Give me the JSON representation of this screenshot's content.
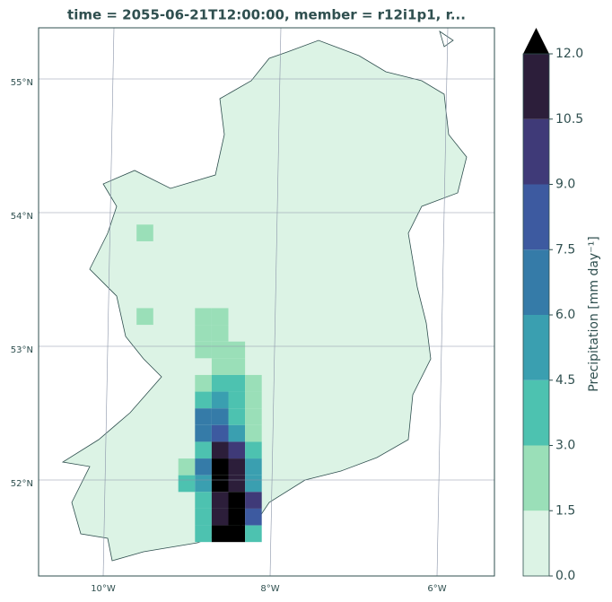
{
  "title": "time = 2055-06-21T12:00:00, member = r12i1p1, r...",
  "map": {
    "lon_labels": [
      {
        "value": -10,
        "label": "10°W"
      },
      {
        "value": -8,
        "label": "8°W"
      },
      {
        "value": -6,
        "label": "6°W"
      }
    ],
    "lat_labels": [
      {
        "value": 55,
        "label": "55°N"
      },
      {
        "value": 54,
        "label": "54°N"
      },
      {
        "value": 53,
        "label": "53°N"
      },
      {
        "value": 52,
        "label": "52°N"
      }
    ],
    "cells": [
      {
        "lon": -8.8,
        "lat": 53.25,
        "value": 1.6
      },
      {
        "lon": -8.6,
        "lat": 53.25,
        "value": 2
      },
      {
        "lon": -8.8,
        "lat": 53.125,
        "value": 2
      },
      {
        "lon": -8.6,
        "lat": 53.125,
        "value": 2
      },
      {
        "lon": -8.8,
        "lat": 53.0,
        "value": 2
      },
      {
        "lon": -8.6,
        "lat": 53.0,
        "value": 2
      },
      {
        "lon": -8.4,
        "lat": 53.0,
        "value": 1.8
      },
      {
        "lon": -8.6,
        "lat": 52.875,
        "value": 2.5
      },
      {
        "lon": -8.4,
        "lat": 52.875,
        "value": 2
      },
      {
        "lon": -8.8,
        "lat": 52.75,
        "value": 2
      },
      {
        "lon": -8.6,
        "lat": 52.75,
        "value": 4
      },
      {
        "lon": -8.4,
        "lat": 52.75,
        "value": 3.5
      },
      {
        "lon": -8.2,
        "lat": 52.75,
        "value": 2
      },
      {
        "lon": -8.8,
        "lat": 52.625,
        "value": 4
      },
      {
        "lon": -8.6,
        "lat": 52.625,
        "value": 5
      },
      {
        "lon": -8.4,
        "lat": 52.625,
        "value": 4
      },
      {
        "lon": -8.2,
        "lat": 52.625,
        "value": 2
      },
      {
        "lon": -8.8,
        "lat": 52.5,
        "value": 6
      },
      {
        "lon": -8.6,
        "lat": 52.5,
        "value": 7
      },
      {
        "lon": -8.4,
        "lat": 52.5,
        "value": 3.5
      },
      {
        "lon": -8.2,
        "lat": 52.5,
        "value": 2
      },
      {
        "lon": -8.8,
        "lat": 52.375,
        "value": 6
      },
      {
        "lon": -8.6,
        "lat": 52.375,
        "value": 8
      },
      {
        "lon": -8.4,
        "lat": 52.375,
        "value": 5
      },
      {
        "lon": -8.2,
        "lat": 52.375,
        "value": 2
      },
      {
        "lon": -8.8,
        "lat": 52.25,
        "value": 4
      },
      {
        "lon": -8.6,
        "lat": 52.25,
        "value": 11
      },
      {
        "lon": -8.4,
        "lat": 52.25,
        "value": 9
      },
      {
        "lon": -8.2,
        "lat": 52.25,
        "value": 4
      },
      {
        "lon": -9.0,
        "lat": 52.125,
        "value": 2
      },
      {
        "lon": -8.8,
        "lat": 52.125,
        "value": 6
      },
      {
        "lon": -8.6,
        "lat": 52.125,
        "value": 13
      },
      {
        "lon": -8.4,
        "lat": 52.125,
        "value": 11
      },
      {
        "lon": -8.2,
        "lat": 52.125,
        "value": 5
      },
      {
        "lon": -9.0,
        "lat": 52.0,
        "value": 3
      },
      {
        "lon": -8.8,
        "lat": 52.0,
        "value": 5
      },
      {
        "lon": -8.6,
        "lat": 52.0,
        "value": 13
      },
      {
        "lon": -8.4,
        "lat": 52.0,
        "value": 11
      },
      {
        "lon": -8.2,
        "lat": 52.0,
        "value": 5
      },
      {
        "lon": -8.8,
        "lat": 51.875,
        "value": 3
      },
      {
        "lon": -8.6,
        "lat": 51.875,
        "value": 11
      },
      {
        "lon": -8.4,
        "lat": 51.875,
        "value": 13
      },
      {
        "lon": -8.2,
        "lat": 51.875,
        "value": 10
      },
      {
        "lon": -8.8,
        "lat": 51.75,
        "value": 4
      },
      {
        "lon": -8.6,
        "lat": 51.75,
        "value": 11
      },
      {
        "lon": -8.4,
        "lat": 51.75,
        "value": 13
      },
      {
        "lon": -8.2,
        "lat": 51.75,
        "value": 8
      },
      {
        "lon": -8.8,
        "lat": 51.625,
        "value": 3
      },
      {
        "lon": -8.6,
        "lat": 51.625,
        "value": 13
      },
      {
        "lon": -8.4,
        "lat": 51.625,
        "value": 12.5
      },
      {
        "lon": -8.2,
        "lat": 51.625,
        "value": 3
      },
      {
        "lon": -9.5,
        "lat": 53.875,
        "value": 2
      },
      {
        "lon": -9.5,
        "lat": 53.25,
        "value": 2
      }
    ]
  },
  "colorbar": {
    "label": "Precipitation [mm day⁻¹]",
    "ticks": [
      {
        "value": 0,
        "label": "0.0"
      },
      {
        "value": 1.5,
        "label": "1.5"
      },
      {
        "value": 3,
        "label": "3.0"
      },
      {
        "value": 4.5,
        "label": "4.5"
      },
      {
        "value": 6,
        "label": "6.0"
      },
      {
        "value": 7.5,
        "label": "7.5"
      },
      {
        "value": 9,
        "label": "9.0"
      },
      {
        "value": 10.5,
        "label": "10.5"
      },
      {
        "value": 12,
        "label": "12.0"
      }
    ],
    "colors": [
      "#dcf3e5",
      "#9adfb8",
      "#4dc2b0",
      "#3a9fb0",
      "#357ba8",
      "#3d5aa0",
      "#3f3a78",
      "#2c1e3a"
    ],
    "extend_color": "#000000"
  }
}
